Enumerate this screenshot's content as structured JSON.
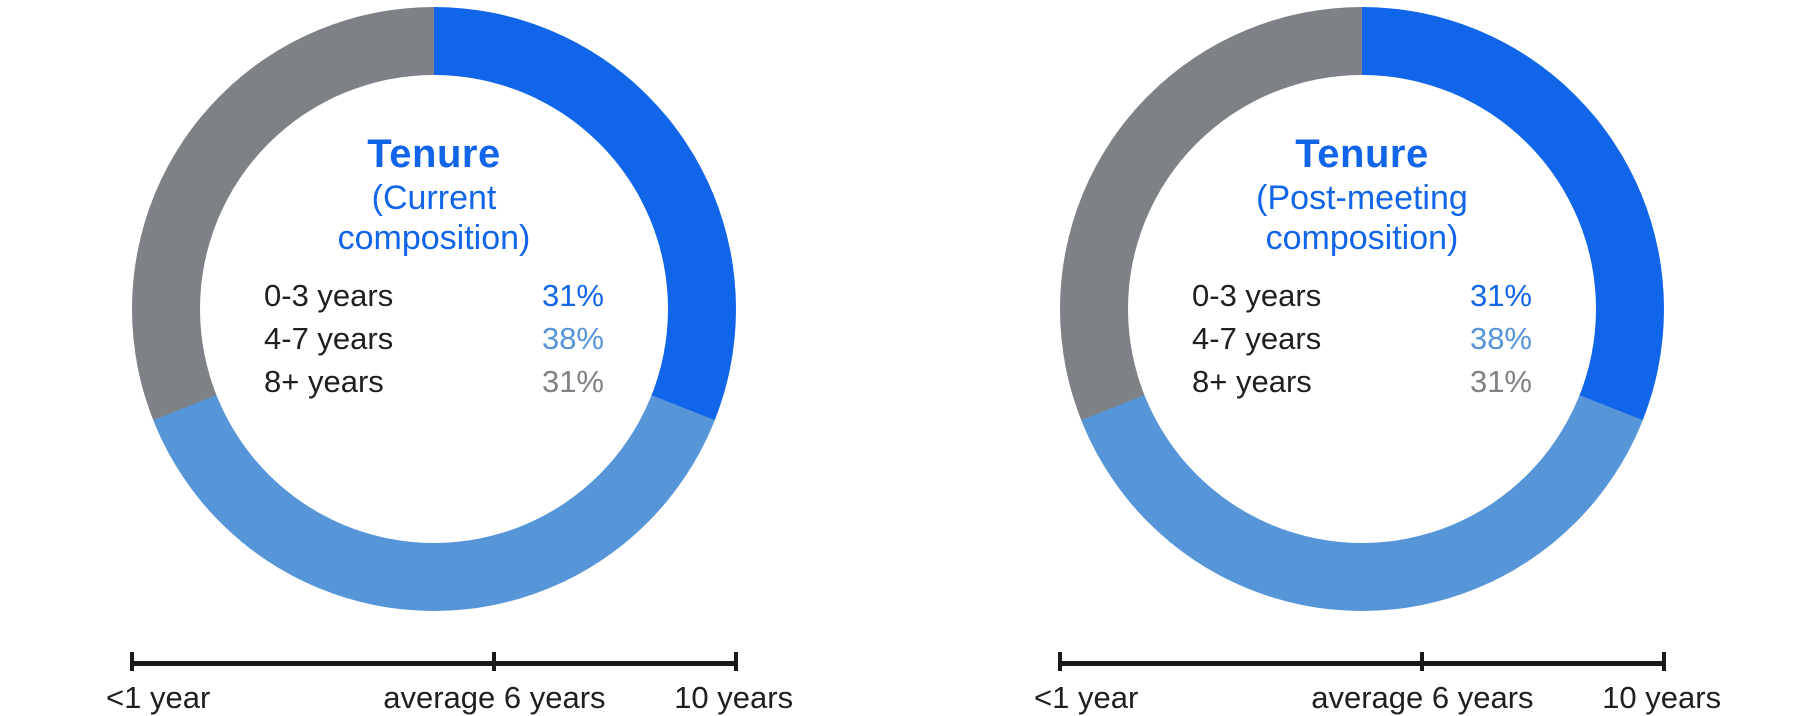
{
  "page": {
    "background": "#ffffff"
  },
  "styles": {
    "title_color": "#1165E8",
    "text_color": "#1f1f1f",
    "axis_color": "#1a1a1a"
  },
  "chart_data": [
    {
      "type": "donut",
      "title": "Tenure",
      "subtitle": "(Current composition)",
      "start_angle": "top",
      "direction": "clockwise",
      "inner_radius_ratio": 0.775,
      "segments": [
        {
          "label": "0-3 years",
          "value": 31,
          "display": "31%",
          "color": "#1165E8"
        },
        {
          "label": "4-7 years",
          "value": 38,
          "display": "38%",
          "color": "#5695D8"
        },
        {
          "label": "8+ years",
          "value": 31,
          "display": "31%",
          "color": "#7E8185"
        }
      ],
      "scale_axis": {
        "min": 0,
        "max": 10,
        "ticks": [
          {
            "label": "<1 year",
            "position_pct": 0
          },
          {
            "label": "average 6 years",
            "position_pct": 60
          },
          {
            "label": "10 years",
            "position_pct": 100
          }
        ]
      }
    },
    {
      "type": "donut",
      "title": "Tenure",
      "subtitle": "(Post-meeting composition)",
      "start_angle": "top",
      "direction": "clockwise",
      "inner_radius_ratio": 0.775,
      "segments": [
        {
          "label": "0-3 years",
          "value": 31,
          "display": "31%",
          "color": "#1165E8"
        },
        {
          "label": "4-7 years",
          "value": 38,
          "display": "38%",
          "color": "#5695D8"
        },
        {
          "label": "8+ years",
          "value": 31,
          "display": "31%",
          "color": "#7E8185"
        }
      ],
      "scale_axis": {
        "min": 0,
        "max": 10,
        "ticks": [
          {
            "label": "<1 year",
            "position_pct": 0
          },
          {
            "label": "average 6 years",
            "position_pct": 60
          },
          {
            "label": "10 years",
            "position_pct": 100
          }
        ]
      }
    }
  ]
}
